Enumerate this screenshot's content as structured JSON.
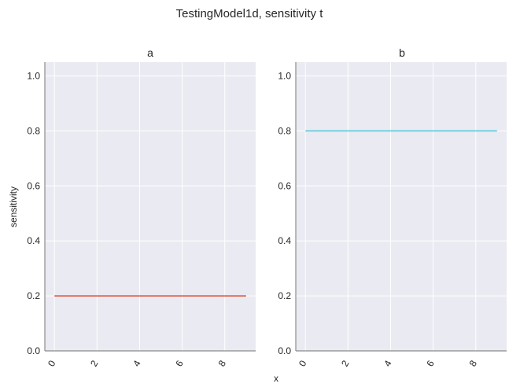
{
  "figure": {
    "title": "TestingModel1d, sensitivity t",
    "xlabel": "x",
    "ylabel": "sensitivity"
  },
  "chart_data": [
    {
      "type": "line",
      "title": "a",
      "xlabel": "",
      "ylabel": "sensitivity",
      "xlim": [
        -0.45,
        9.45
      ],
      "ylim": [
        0,
        1.05
      ],
      "xticks": [
        0,
        2,
        4,
        6,
        8
      ],
      "yticks": [
        "0.0",
        "0.2",
        "0.4",
        "0.6",
        "0.8",
        "1.0"
      ],
      "grid": true,
      "series": [
        {
          "color": "#e24a33",
          "x": [
            0,
            1,
            2,
            3,
            4,
            5,
            6,
            7,
            8,
            9
          ],
          "y": [
            0.2,
            0.2,
            0.2,
            0.2,
            0.2,
            0.2,
            0.2,
            0.2,
            0.2,
            0.2
          ]
        }
      ]
    },
    {
      "type": "line",
      "title": "b",
      "xlabel": "x",
      "ylabel": "",
      "xlim": [
        -0.45,
        9.45
      ],
      "ylim": [
        0,
        1.05
      ],
      "xticks": [
        0,
        2,
        4,
        6,
        8
      ],
      "yticks": [
        "0.0",
        "0.2",
        "0.4",
        "0.6",
        "0.8",
        "1.0"
      ],
      "grid": true,
      "series": [
        {
          "color": "#4fc8d8",
          "x": [
            0,
            1,
            2,
            3,
            4,
            5,
            6,
            7,
            8,
            9
          ],
          "y": [
            0.8,
            0.8,
            0.8,
            0.8,
            0.8,
            0.8,
            0.8,
            0.8,
            0.8,
            0.8
          ]
        }
      ]
    }
  ],
  "colors": {
    "plot_background": "#eaeaf2",
    "grid": "#ffffff",
    "spine": "#8c8c8c"
  }
}
